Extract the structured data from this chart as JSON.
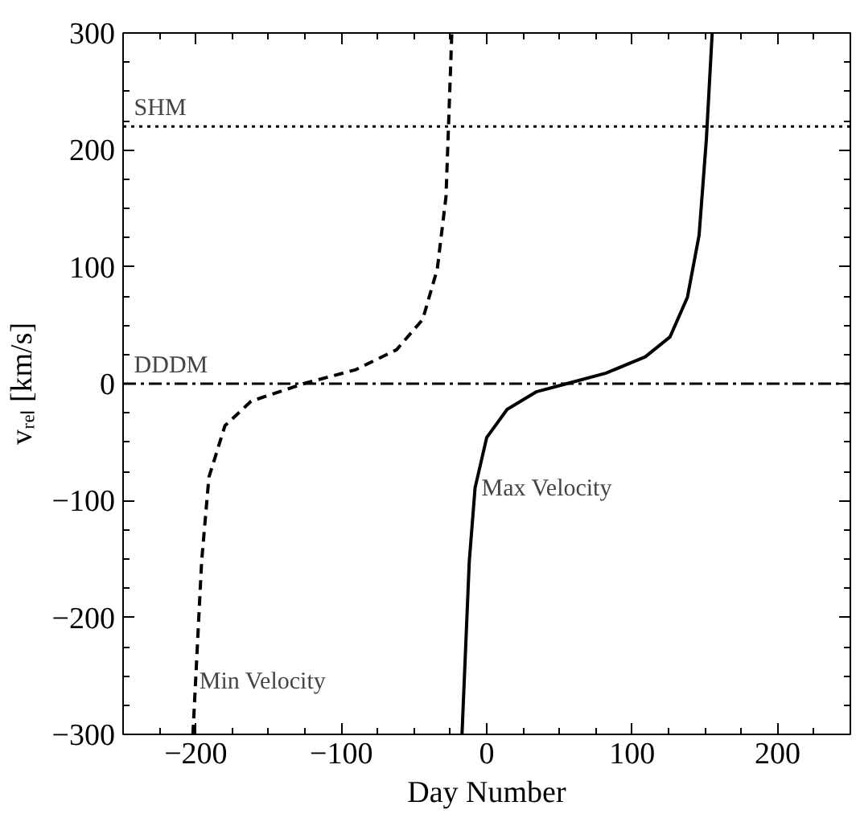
{
  "chart_data": {
    "type": "line",
    "xlabel": "Day Number",
    "ylabel": "vᵣₑₗ [km/s]",
    "xlim": [
      -250,
      250
    ],
    "ylim": [
      -300,
      300
    ],
    "xticks": [
      -200,
      -100,
      0,
      100,
      200
    ],
    "yticks": [
      -300,
      -200,
      -100,
      0,
      100,
      200,
      300
    ],
    "grid": false,
    "series": [
      {
        "name": "Min Velocity",
        "color": "#000000",
        "line_style": "dashed",
        "x": [
          -202,
          -196,
          -191,
          -180,
          -162,
          -126,
          -90,
          -62,
          -44,
          -34,
          -28,
          -24
        ],
        "values": [
          -300,
          -152,
          -80,
          -36,
          -15,
          0,
          12,
          29,
          55,
          98,
          160,
          300
        ]
      },
      {
        "name": "Max Velocity",
        "color": "#000000",
        "line_style": "solid",
        "x": [
          -17,
          -12,
          -8,
          0,
          14,
          34,
          55,
          82,
          109,
          126,
          138,
          146,
          151,
          155
        ],
        "values": [
          -300,
          -152,
          -89,
          -46,
          -22,
          -7,
          0,
          9,
          23,
          40,
          74,
          127,
          209,
          300
        ]
      }
    ],
    "ref_lines": [
      {
        "axis": "y",
        "value": 220,
        "label": "SHM",
        "line_style": "dotted"
      },
      {
        "axis": "y",
        "value": 0,
        "label": "DDDM",
        "line_style": "dashdot"
      }
    ]
  }
}
